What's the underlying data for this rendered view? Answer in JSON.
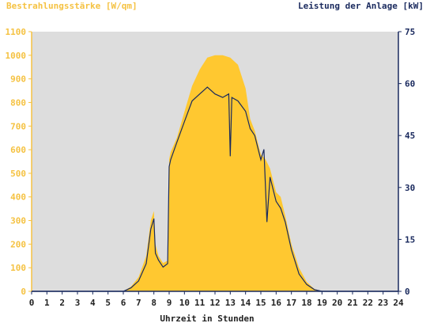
{
  "chart_data": {
    "type": "area",
    "title_left": "Bestrahlungsstärke [W/qm]",
    "title_right": "Leistung der Anlage [kW]",
    "xlabel": "Uhrzeit in Stunden",
    "x_ticks": [
      "0",
      "1",
      "2",
      "3",
      "4",
      "5",
      "6",
      "7",
      "8",
      "9",
      "10",
      "11",
      "12",
      "13",
      "14",
      "15",
      "16",
      "17",
      "18",
      "19",
      "20",
      "21",
      "22",
      "23",
      "24"
    ],
    "y_left_ticks": [
      "0",
      "100",
      "200",
      "300",
      "400",
      "500",
      "600",
      "700",
      "800",
      "900",
      "1000",
      "1100"
    ],
    "y_right_ticks": [
      "0",
      "15",
      "30",
      "45",
      "60",
      "75"
    ],
    "xlim": [
      0,
      24
    ],
    "ylim_left": [
      0,
      1100
    ],
    "ylim_right": [
      0,
      75
    ],
    "grid": false,
    "colors": {
      "background": "#dddddd",
      "irradiance_fill": "#ffc830",
      "power_line": "#1a2a5e",
      "left_axis": "#f5c242",
      "right_axis": "#1a2a5e"
    },
    "series": [
      {
        "axis": "left",
        "kind": "area",
        "x": [
          0,
          6.0,
          6.5,
          7.0,
          7.5,
          7.8,
          8.0,
          8.1,
          8.3,
          8.6,
          8.9,
          9.0,
          9.1,
          9.5,
          10.0,
          10.5,
          11.0,
          11.5,
          12.0,
          12.5,
          13.0,
          13.5,
          14.0,
          14.3,
          14.6,
          15.0,
          15.3,
          15.6,
          16.0,
          16.3,
          16.6,
          17.0,
          17.5,
          18.0,
          18.5,
          19.0,
          24
        ],
        "y": [
          0,
          0,
          20,
          60,
          150,
          300,
          340,
          200,
          150,
          120,
          130,
          560,
          590,
          650,
          760,
          870,
          940,
          990,
          1000,
          1000,
          990,
          960,
          860,
          730,
          680,
          580,
          560,
          520,
          420,
          400,
          320,
          200,
          100,
          40,
          10,
          0,
          0
        ]
      },
      {
        "axis": "right",
        "kind": "line",
        "x": [
          0,
          6.0,
          6.5,
          7.0,
          7.5,
          7.8,
          8.0,
          8.1,
          8.3,
          8.6,
          8.9,
          9.0,
          9.1,
          9.5,
          10.0,
          10.5,
          11.0,
          11.5,
          12.0,
          12.5,
          12.9,
          13.0,
          13.1,
          13.5,
          14.0,
          14.3,
          14.6,
          15.0,
          15.2,
          15.4,
          15.6,
          16.0,
          16.3,
          16.6,
          17.0,
          17.5,
          18.0,
          18.5,
          19.0,
          24
        ],
        "y": [
          0,
          0,
          1,
          3,
          8,
          18,
          21,
          11,
          9,
          7,
          8,
          36,
          38,
          43,
          49,
          55,
          57,
          59,
          57,
          56,
          57,
          39,
          56,
          55,
          52,
          47,
          45,
          38,
          41,
          20,
          33,
          26,
          24,
          20,
          12,
          5,
          2,
          0.5,
          0,
          0
        ]
      }
    ]
  }
}
